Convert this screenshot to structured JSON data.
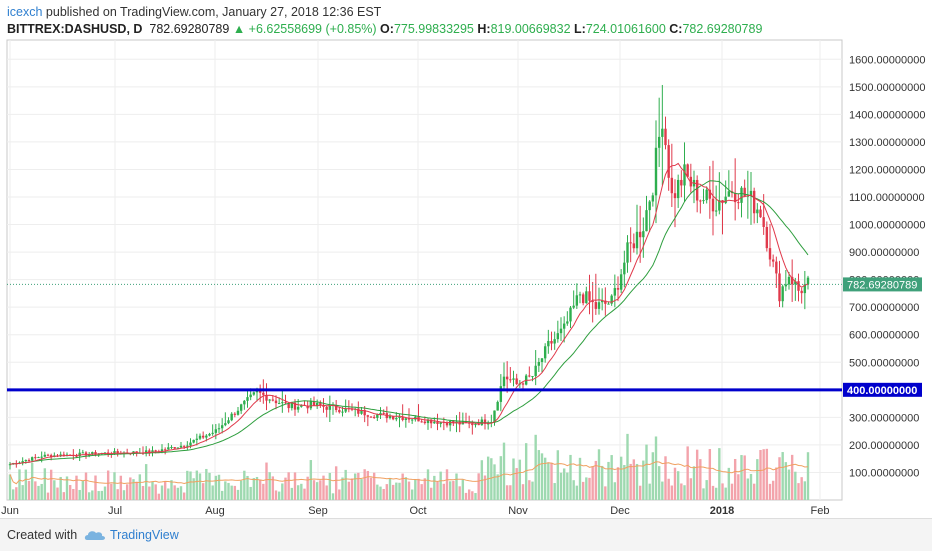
{
  "header": {
    "user": "icexch",
    "published_text": " published on TradingView.com, January 27, 2018 12:36 EST",
    "symbol": "BITTREX:DASHUSD, D",
    "last": "782.69280789",
    "change": "+6.62558699 (+0.85%)",
    "open_label": "O:",
    "open_value": "775.99833295",
    "high_label": "H:",
    "high_value": "819.00669832",
    "low_label": "L:",
    "low_value": "724.01061600",
    "close_label": "C:",
    "close_value": "782.69280789"
  },
  "footer": {
    "created_with": "Created with",
    "brand": "TradingView"
  },
  "colors": {
    "up": "#2eae4e",
    "down": "#e0394b",
    "support_line": "#0000cc",
    "ma_fast": "#e0394b",
    "ma_slow": "#2e9e3e",
    "vol_ma": "#f0a060"
  },
  "chart_data": {
    "type": "candlestick",
    "x_ticks": [
      "Jun",
      "Jul",
      "Aug",
      "Sep",
      "Oct",
      "Nov",
      "Dec",
      "2018",
      "Feb"
    ],
    "y_ticks": [
      "100.00000000",
      "200.00000000",
      "300.00000000",
      "400.00000000",
      "500.00000000",
      "600.00000000",
      "700.00000000",
      "800.00000000",
      "900.00000000",
      "1000.00000000",
      "1100.00000000",
      "1200.00000000",
      "1300.00000000",
      "1400.00000000",
      "1500.00000000",
      "1600.00000000"
    ],
    "ylim": [
      0,
      1670
    ],
    "support_level": 400,
    "support_label": "400.00000000",
    "last_price": 782.69280789,
    "last_price_label": "782.69280789",
    "close_anchors": [
      [
        0,
        130
      ],
      [
        10,
        160
      ],
      [
        20,
        165
      ],
      [
        30,
        170
      ],
      [
        45,
        175
      ],
      [
        55,
        200
      ],
      [
        65,
        250
      ],
      [
        72,
        330
      ],
      [
        78,
        390
      ],
      [
        82,
        370
      ],
      [
        88,
        340
      ],
      [
        95,
        345
      ],
      [
        105,
        330
      ],
      [
        115,
        310
      ],
      [
        125,
        300
      ],
      [
        135,
        285
      ],
      [
        145,
        275
      ],
      [
        152,
        290
      ],
      [
        156,
        450
      ],
      [
        160,
        420
      ],
      [
        165,
        450
      ],
      [
        170,
        560
      ],
      [
        175,
        620
      ],
      [
        180,
        750
      ],
      [
        185,
        700
      ],
      [
        190,
        720
      ],
      [
        195,
        900
      ],
      [
        200,
        1000
      ],
      [
        203,
        1150
      ],
      [
        206,
        1400
      ],
      [
        209,
        1100
      ],
      [
        213,
        1180
      ],
      [
        218,
        1100
      ],
      [
        223,
        1080
      ],
      [
        228,
        1130
      ],
      [
        233,
        1100
      ],
      [
        237,
        1050
      ],
      [
        240,
        900
      ],
      [
        243,
        750
      ],
      [
        246,
        820
      ],
      [
        249,
        760
      ],
      [
        252,
        783
      ]
    ],
    "volume_scale_label": "volume",
    "ma_fast_label": "",
    "ma_slow_label": ""
  }
}
